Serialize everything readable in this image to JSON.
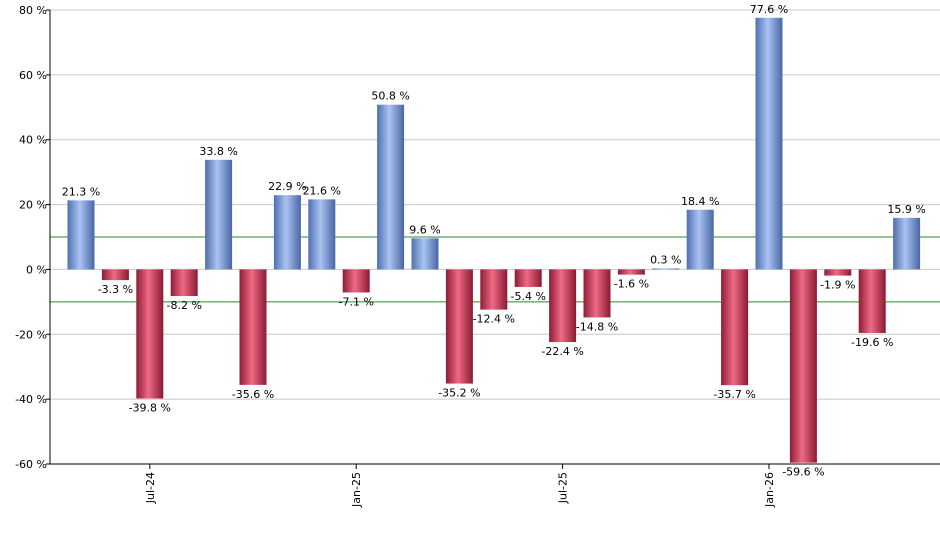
{
  "chart_data": {
    "type": "bar",
    "title": "",
    "xlabel": "",
    "ylabel": "",
    "ylim": [
      -60,
      80
    ],
    "yticks": [
      80,
      60,
      40,
      20,
      0,
      -20,
      -40,
      -60
    ],
    "ytick_suffix": " %",
    "grid": true,
    "values": [
      21.3,
      -3.3,
      -39.8,
      -8.2,
      33.8,
      -35.6,
      22.9,
      21.6,
      -7.1,
      50.8,
      9.6,
      -35.2,
      -12.4,
      -5.4,
      -22.4,
      -14.8,
      -1.6,
      0.3,
      18.4,
      -35.7,
      77.6,
      -59.6,
      -1.9,
      -19.6,
      15.9
    ],
    "value_labels": [
      "21.3 %",
      "-3.3 %",
      "-39.8 %",
      "-8.2 %",
      "33.8 %",
      "-35.6 %",
      "22.9 %",
      "21.6 %",
      "-7.1 %",
      "50.8 %",
      "9.6 %",
      "-35.2 %",
      "-12.4 %",
      "-5.4 %",
      "-22.4 %",
      "-14.8 %",
      "-1.6 %",
      "0.3 %",
      "18.4 %",
      "-35.7 %",
      "77.6 %",
      "-59.6 %",
      "-1.9 %",
      "-19.6 %",
      "15.9 %"
    ],
    "x_tick_labels": [
      {
        "index": 2,
        "label": "Jul-24"
      },
      {
        "index": 8,
        "label": "Jan-25"
      },
      {
        "index": 14,
        "label": "Jul-25"
      },
      {
        "index": 20,
        "label": "Jan-26"
      }
    ],
    "reference_lines": [
      10,
      -10
    ],
    "colors": {
      "positive": "#7fa3e0",
      "negative": "#c9304f",
      "reference_line": "#2a8a2a",
      "grid": "#c8c8c8",
      "axis": "#000000"
    }
  }
}
